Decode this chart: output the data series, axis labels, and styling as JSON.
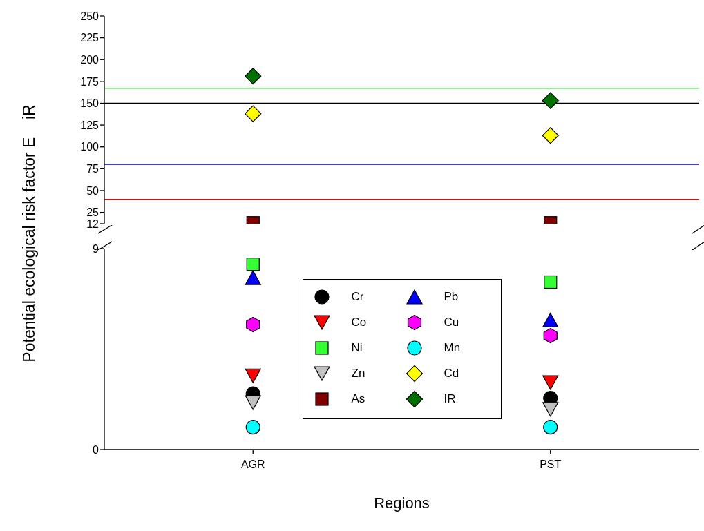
{
  "chart_data": [
    {
      "type": "scatter",
      "ylabel": "Potential ecological risk factor E    iR",
      "ylim": [
        12,
        250
      ],
      "yticks": [
        12,
        25,
        50,
        75,
        100,
        125,
        150,
        175,
        200,
        225,
        250
      ],
      "tick_labels": "y",
      "legend": "bottom",
      "ref_lines": [
        {
          "axis": "y",
          "value": 167,
          "color": "#33dd33"
        },
        {
          "axis": "y",
          "value": 150,
          "color": "#000000"
        },
        {
          "axis": "y",
          "value": 80,
          "color": "#0000cc"
        },
        {
          "axis": "y",
          "value": 40,
          "color": "#ff0000"
        }
      ],
      "series": [
        {
          "name": "Cd",
          "color": "#ffff00",
          "marker": "diamond",
          "values": [
            138,
            113
          ]
        },
        {
          "name": "As",
          "color": "#800000",
          "marker": "square",
          "values": [
            13,
            13
          ]
        },
        {
          "name": "IR",
          "color": "#007000",
          "marker": "diamond",
          "values": [
            181,
            153
          ]
        }
      ]
    },
    {
      "type": "scatter",
      "xlabel": "Regions",
      "categories": [
        "AGR",
        "PST"
      ],
      "ylim": [
        0,
        9
      ],
      "yticks": [
        0,
        9
      ],
      "legend": "center",
      "series": [
        {
          "name": "Cr",
          "color": "#000000",
          "marker": "circle",
          "values": [
            2.5,
            2.3
          ]
        },
        {
          "name": "Pb",
          "color": "#0000ff",
          "marker": "triangle",
          "values": [
            7.7,
            5.8
          ]
        },
        {
          "name": "Co",
          "color": "#ff0000",
          "marker": "triangle-down",
          "values": [
            3.3,
            3.0
          ]
        },
        {
          "name": "Cu",
          "color": "#ff00ff",
          "values": [
            5.6,
            5.1
          ]
        },
        {
          "name": "Ni",
          "color": "#33ff33",
          "marker": "square",
          "values": [
            8.3,
            7.5
          ]
        },
        {
          "name": "Mn",
          "color": "#00ffff",
          "marker": "circle",
          "values": [
            1.0,
            1.0
          ]
        },
        {
          "name": "Zn",
          "color": "#c0c0c0",
          "marker": "triangle-down",
          "values": [
            2.1,
            1.8
          ]
        }
      ]
    }
  ]
}
